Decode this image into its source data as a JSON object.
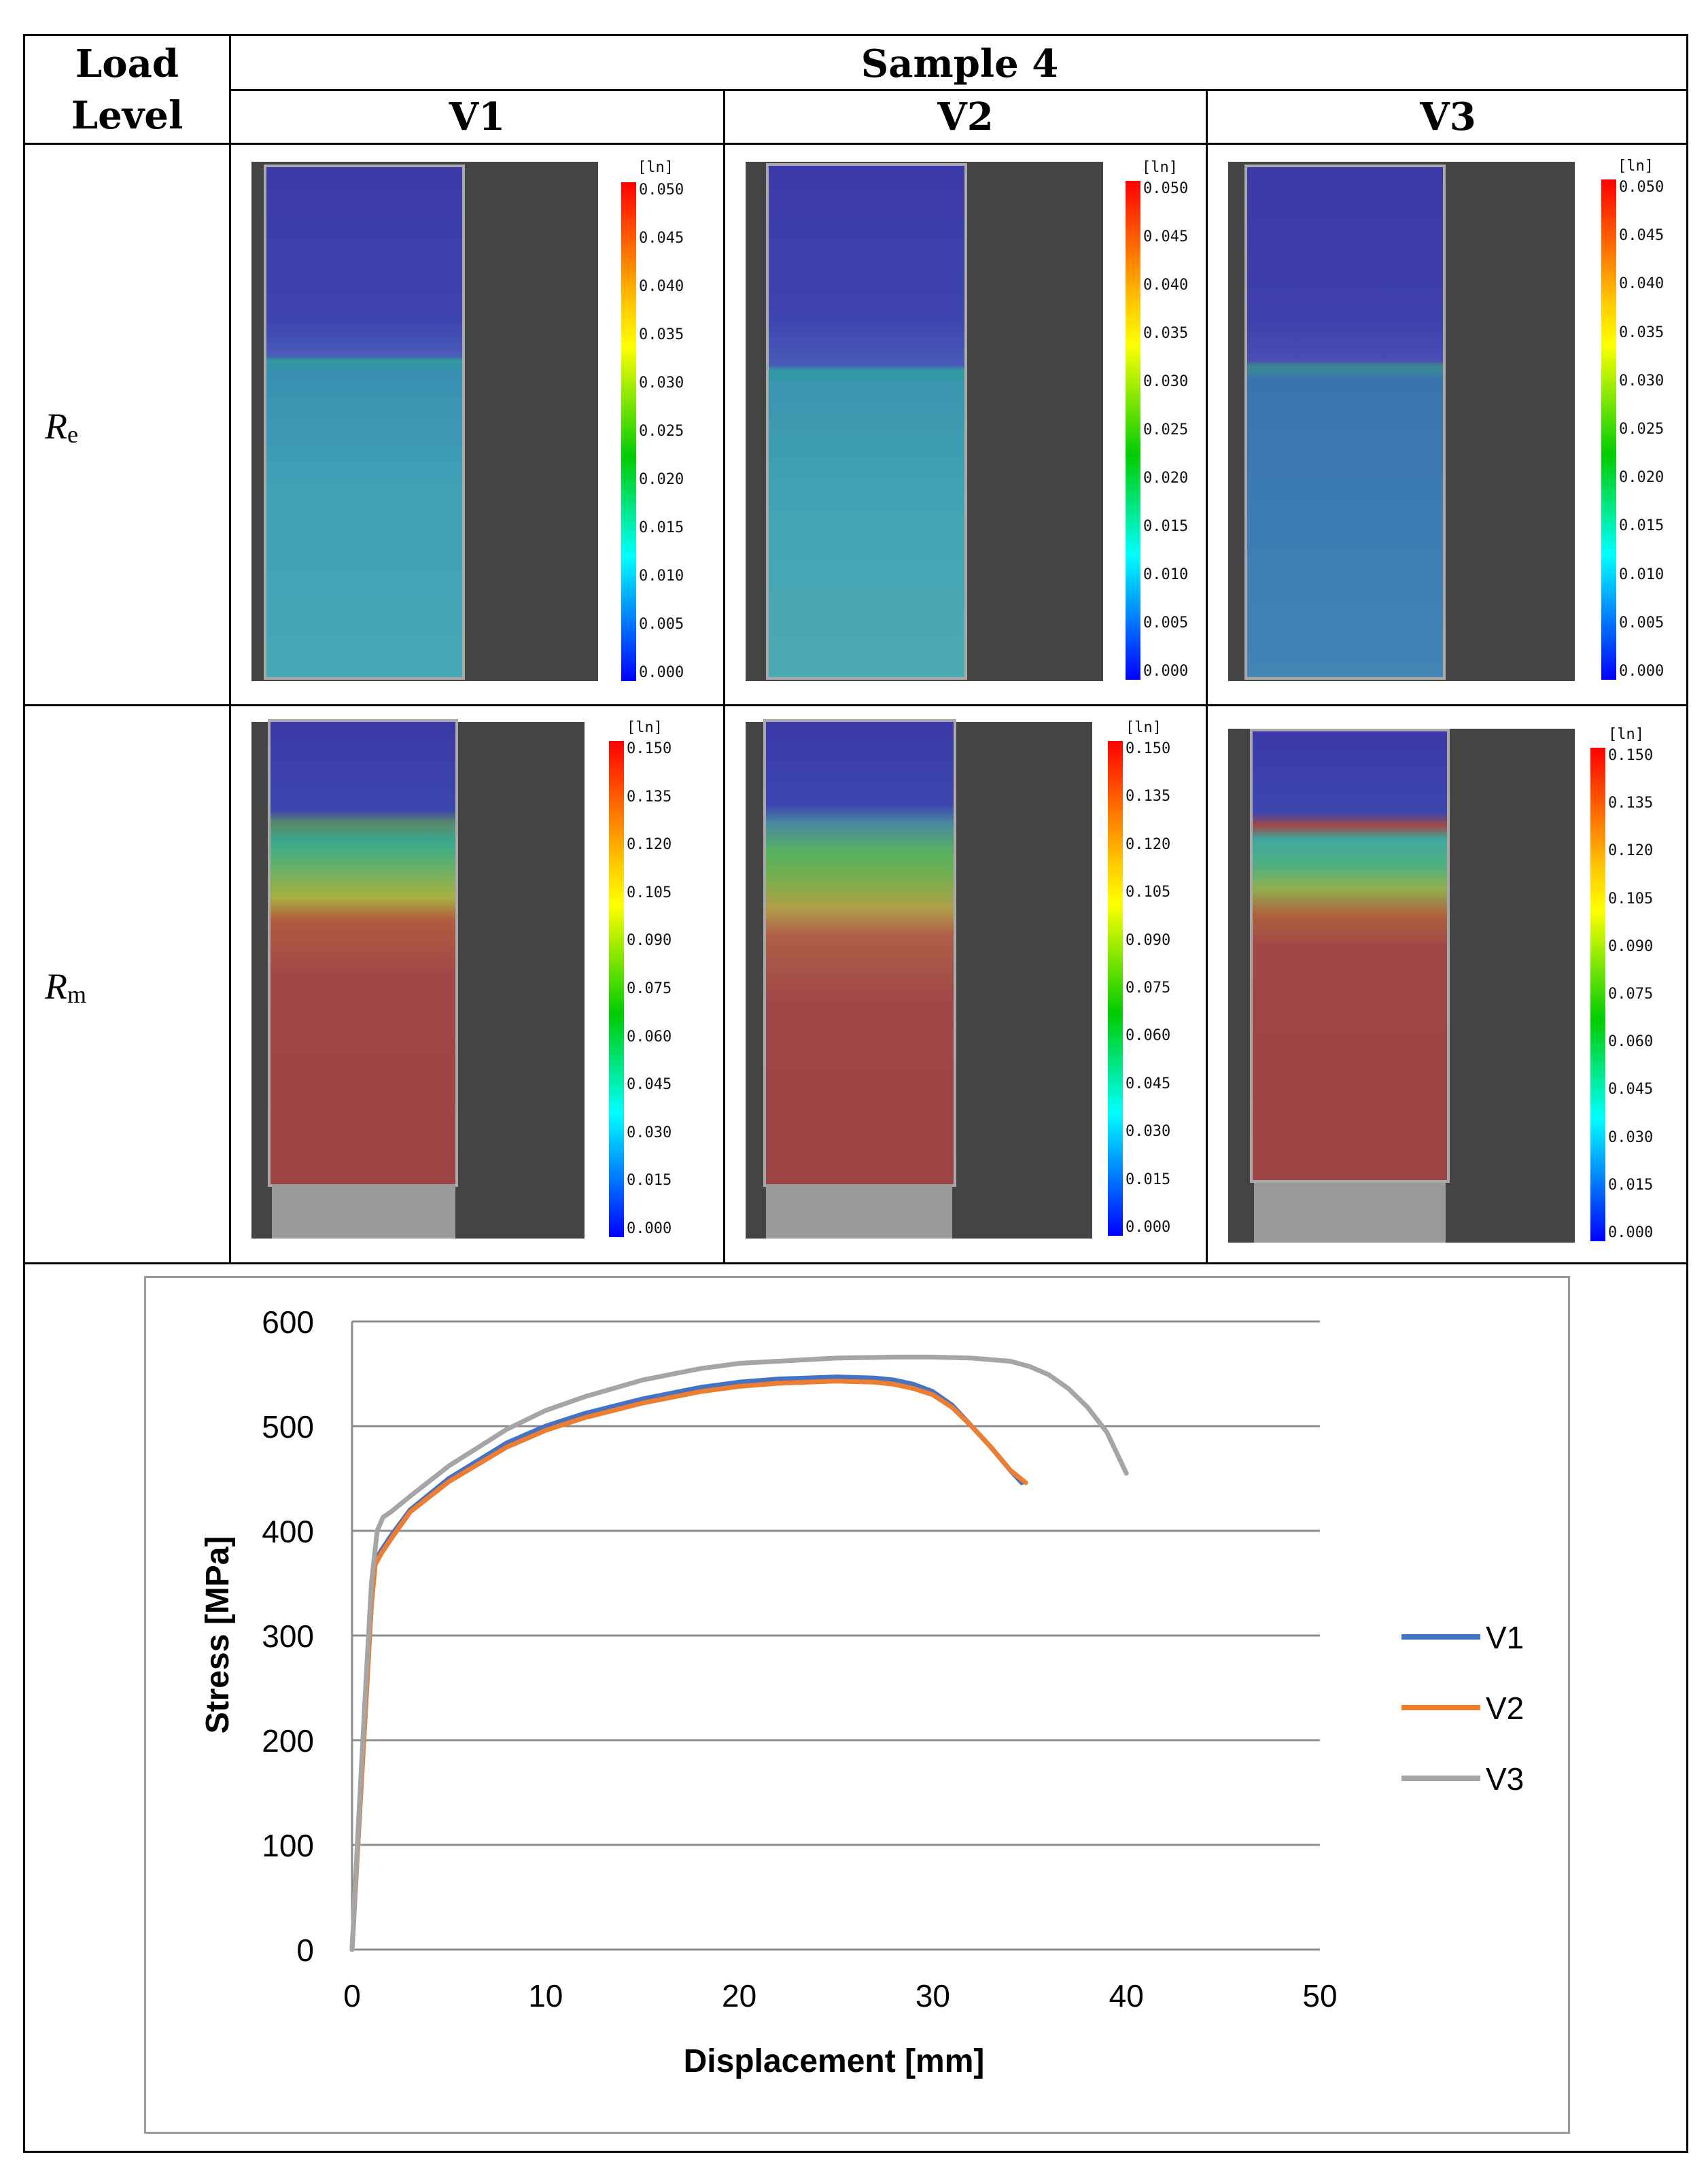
{
  "table": {
    "header_load_level": "Load\nLevel",
    "header_load_line1": "Load",
    "header_load_line2": "Level",
    "header_sample": "Sample 4",
    "columns": [
      "V1",
      "V2",
      "V3"
    ],
    "rows": [
      {
        "symbol": "R",
        "sub": "e",
        "scale_unit": "[ln]",
        "scale_ticks": [
          "0.050",
          "0.045",
          "0.040",
          "0.035",
          "0.030",
          "0.025",
          "0.020",
          "0.015",
          "0.010",
          "0.005",
          "0.000"
        ]
      },
      {
        "symbol": "R",
        "sub": "m",
        "scale_unit": "[ln]",
        "scale_ticks": [
          "0.150",
          "0.135",
          "0.120",
          "0.105",
          "0.090",
          "0.075",
          "0.060",
          "0.045",
          "0.030",
          "0.015",
          "0.000"
        ]
      }
    ]
  },
  "colors": {
    "V1": "#4472C4",
    "V2": "#ED7D31",
    "V3": "#A5A5A5"
  },
  "chart_data": {
    "type": "line",
    "title": "",
    "xlabel": "Displacement [mm]",
    "ylabel": "Stress [MPa]",
    "xlim": [
      0,
      50
    ],
    "ylim": [
      0,
      600
    ],
    "xticks": [
      "0",
      "10",
      "20",
      "30",
      "40",
      "50"
    ],
    "yticks": [
      "0",
      "100",
      "200",
      "300",
      "400",
      "500",
      "600"
    ],
    "grid": "horizontal",
    "legend": "right",
    "series": [
      {
        "name": "V1",
        "x": [
          0,
          0.3,
          0.7,
          1.0,
          1.2,
          1.5,
          2.0,
          3.0,
          5.0,
          8.0,
          10,
          12,
          15,
          18,
          20,
          22,
          25,
          27,
          28,
          29,
          30,
          31,
          32,
          33,
          34,
          34.6
        ],
        "y": [
          0,
          100,
          230,
          330,
          372,
          381,
          395,
          420,
          450,
          484,
          500,
          512,
          526,
          537,
          542,
          545,
          547,
          546,
          544,
          540,
          533,
          520,
          500,
          480,
          458,
          446
        ]
      },
      {
        "name": "V2",
        "x": [
          0,
          0.3,
          0.7,
          1.0,
          1.2,
          1.5,
          2.0,
          3.0,
          5.0,
          8.0,
          10,
          12,
          15,
          18,
          20,
          22,
          25,
          27,
          28,
          29,
          30,
          31,
          32,
          33,
          34,
          34.8
        ],
        "y": [
          0,
          100,
          230,
          330,
          368,
          378,
          392,
          418,
          447,
          480,
          496,
          508,
          522,
          533,
          538,
          541,
          543,
          542,
          540,
          536,
          530,
          518,
          500,
          480,
          458,
          446
        ]
      },
      {
        "name": "V3",
        "x": [
          0,
          0.3,
          0.7,
          1.0,
          1.3,
          1.6,
          2.0,
          3.0,
          5.0,
          8.0,
          10,
          12,
          15,
          18,
          20,
          25,
          28,
          30,
          32,
          34,
          35,
          36,
          37,
          38,
          39,
          40.0
        ],
        "y": [
          0,
          110,
          250,
          350,
          400,
          413,
          418,
          433,
          462,
          497,
          515,
          528,
          544,
          555,
          560,
          565,
          566,
          566,
          565,
          562,
          557,
          549,
          536,
          518,
          494,
          455
        ]
      }
    ]
  }
}
